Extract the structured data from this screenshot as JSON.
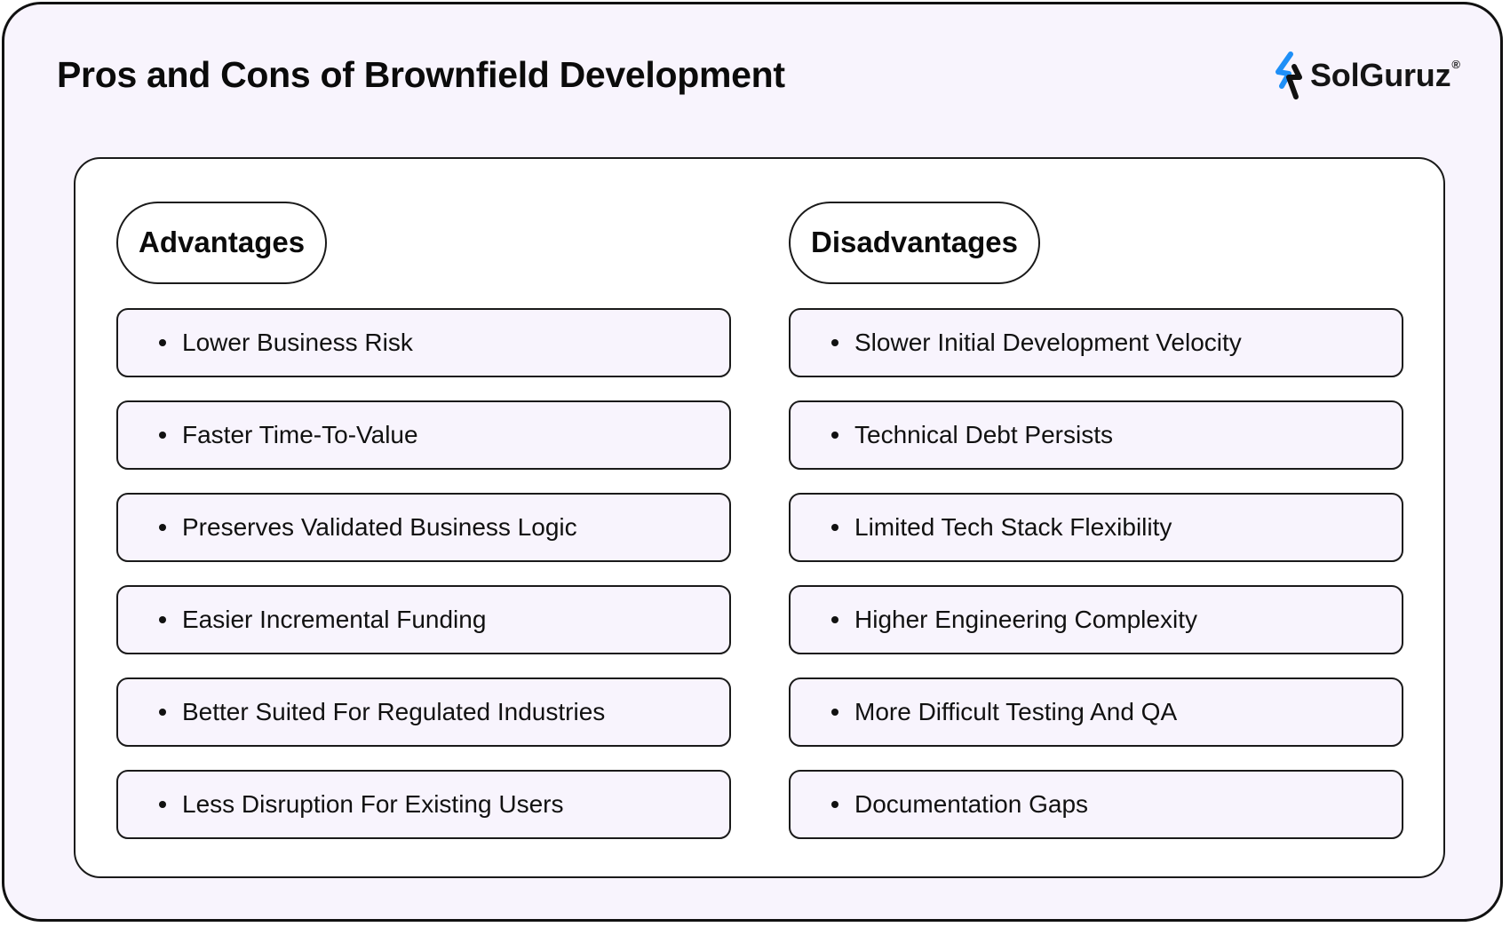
{
  "title": "Pros and Cons of Brownfield Development",
  "logo": {
    "text": "SolGuruz",
    "registered": "®"
  },
  "colors": {
    "background": "#f8f4fd",
    "panel": "#ffffff",
    "border": "#1a1a1a",
    "logo_mark_blue": "#1f8ff7",
    "logo_mark_dark": "#111111"
  },
  "advantages": {
    "heading": "Advantages",
    "items": [
      "Lower Business Risk",
      "Faster Time-To-Value",
      "Preserves Validated Business Logic",
      "Easier Incremental Funding",
      "Better Suited For Regulated Industries",
      "Less Disruption For Existing Users"
    ]
  },
  "disadvantages": {
    "heading": "Disadvantages",
    "items": [
      "Slower Initial Development Velocity",
      "Technical Debt Persists",
      "Limited Tech Stack Flexibility",
      "Higher Engineering Complexity",
      "More Difficult Testing And QA",
      "Documentation Gaps"
    ]
  }
}
